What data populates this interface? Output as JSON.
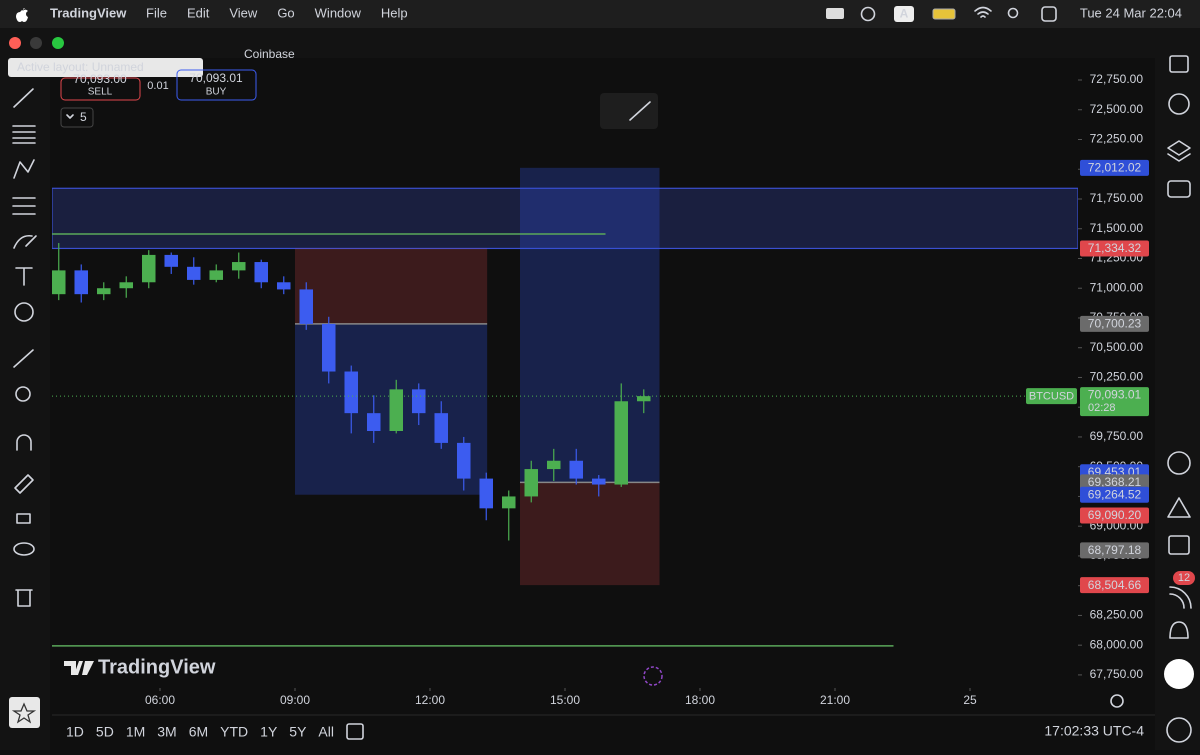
{
  "menu_bar": {
    "app": "TradingView",
    "items": [
      "File",
      "Edit",
      "View",
      "Go",
      "Window",
      "Help"
    ],
    "input_indicator": "A",
    "clock": "Tue 24 Mar  22:04"
  },
  "window": {
    "tooltip": "Active layout: Unnamed",
    "symbol_exchange": "Coinbase"
  },
  "order_panel": {
    "sell_price": "70,093.00",
    "sell_label": "SELL",
    "quantity": "0.01",
    "buy_price": "70,093.01",
    "buy_label": "BUY",
    "indicator_count": "5"
  },
  "chart_data": {
    "type": "candlestick",
    "watermark": "TradingView",
    "symbol": "BTCUSD",
    "countdown": "02:28",
    "up_color": "#4caf50",
    "down_color": "#3c5cf0",
    "x": [
      3.75,
      4.25,
      4.75,
      5.25,
      5.75,
      6.25,
      6.75,
      7.25,
      7.75,
      8.25,
      8.75,
      9.25,
      9.75,
      10.25,
      10.75,
      11.25,
      11.75,
      12.25,
      12.75,
      13.25,
      13.75,
      14.25,
      14.75,
      15.25,
      15.75,
      16.25,
      16.75
    ],
    "open": [
      70950,
      71150,
      70950,
      71000,
      71050,
      71280,
      71180,
      71070,
      71150,
      71220,
      71050,
      70990,
      70700,
      70300,
      69950,
      69800,
      70150,
      69950,
      69700,
      69400,
      69150,
      69250,
      69480,
      69550,
      69400,
      69350,
      70050
    ],
    "high": [
      71380,
      71200,
      71050,
      71100,
      71320,
      71300,
      71260,
      71200,
      71300,
      71240,
      71100,
      71050,
      70760,
      70350,
      70100,
      70230,
      70200,
      70050,
      69750,
      69450,
      69300,
      69550,
      69650,
      69650,
      69430,
      70200,
      70150
    ],
    "low": [
      70900,
      70880,
      70900,
      70920,
      71000,
      71120,
      71030,
      71050,
      71080,
      71000,
      70950,
      70650,
      70200,
      69780,
      69700,
      69780,
      69850,
      69650,
      69300,
      69050,
      68880,
      69200,
      69380,
      69350,
      69250,
      69330,
      69950
    ],
    "close": [
      71150,
      70950,
      71000,
      71050,
      71280,
      71180,
      71070,
      71150,
      71220,
      71050,
      70990,
      70700,
      70300,
      69950,
      69800,
      70150,
      69950,
      69700,
      69400,
      69150,
      69250,
      69480,
      69550,
      69400,
      69350,
      70050,
      70093.01
    ],
    "last_price": {
      "value": 70093.01,
      "label": "70,093.01"
    },
    "xlim": [
      3.6,
      26.4
    ],
    "xticks": [
      {
        "value": 6,
        "label": "06:00"
      },
      {
        "value": 9,
        "label": "09:00"
      },
      {
        "value": 12,
        "label": "12:00"
      },
      {
        "value": 15,
        "label": "15:00"
      },
      {
        "value": 18,
        "label": "18:00"
      },
      {
        "value": 21,
        "label": "21:00"
      },
      {
        "value": 24,
        "label": "25"
      }
    ],
    "ylim": [
      67640,
      72935
    ],
    "yticks": [
      {
        "value": 67750,
        "label": "67,750.00"
      },
      {
        "value": 68000,
        "label": "68,000.00"
      },
      {
        "value": 68250,
        "label": "68,250.00"
      },
      {
        "value": 68500,
        "label": "68,500.00"
      },
      {
        "value": 68750,
        "label": "68,750.00"
      },
      {
        "value": 69000,
        "label": "69,000.00"
      },
      {
        "value": 69250,
        "label": "69,250.00"
      },
      {
        "value": 69500,
        "label": "69,500.00"
      },
      {
        "value": 69750,
        "label": "69,750.00"
      },
      {
        "value": 70000,
        "label": "70,000.00"
      },
      {
        "value": 70250,
        "label": "70,250.00"
      },
      {
        "value": 70500,
        "label": "70,500.00"
      },
      {
        "value": 70750,
        "label": "70,750.00"
      },
      {
        "value": 71000,
        "label": "71,000.00"
      },
      {
        "value": 71250,
        "label": "71,250.00"
      },
      {
        "value": 71500,
        "label": "71,500.00"
      },
      {
        "value": 71750,
        "label": "71,750.00"
      },
      {
        "value": 72000,
        "label": "72,000.00"
      },
      {
        "value": 72250,
        "label": "72,250.00"
      },
      {
        "value": 72500,
        "label": "72,500.00"
      },
      {
        "value": 72750,
        "label": "72,750.00"
      }
    ],
    "price_tags": [
      {
        "value": 72012.02,
        "label": "72,012.02",
        "color": "#2f4fd8"
      },
      {
        "value": 71334.32,
        "label": "71,334.32",
        "color": "#e0474c"
      },
      {
        "value": 70700.23,
        "label": "70,700.23",
        "color": "#6b6b6b"
      },
      {
        "value": 69453.01,
        "label": "69,453.01",
        "color": "#2f4fd8"
      },
      {
        "value": 69368.21,
        "label": "69,368.21",
        "color": "#6b6b6b"
      },
      {
        "value": 69264.52,
        "label": "69,264.52",
        "color": "#2f4fd8"
      },
      {
        "value": 69090.2,
        "label": "69,090.20",
        "color": "#e0474c"
      },
      {
        "value": 68797.18,
        "label": "68,797.18",
        "color": "#6b6b6b"
      },
      {
        "value": 68504.66,
        "label": "68,504.66",
        "color": "#e0474c"
      }
    ],
    "positions": [
      {
        "x": [
          9.0,
          13.27
        ],
        "stop": 71334.32,
        "entry": 70700.23,
        "target": 69264.52
      },
      {
        "x": [
          14.0,
          17.1
        ],
        "stop": 68504.66,
        "entry": 69368.21,
        "target": 72012.02
      }
    ],
    "rectangle": {
      "prices": [
        71840,
        71334.32
      ],
      "color": "#3b4fd0"
    },
    "lines": [
      {
        "price": 71456,
        "x": [
          3.6,
          15.9
        ],
        "color": "#5aa85a"
      },
      {
        "price": 67994,
        "x": [
          3.6,
          22.3
        ],
        "color": "#5aa85a"
      }
    ],
    "grid": false
  },
  "timeframes": [
    "1D",
    "5D",
    "1M",
    "3M",
    "6M",
    "YTD",
    "1Y",
    "5Y",
    "All"
  ],
  "status": {
    "clock": "17:02:33 UTC-4"
  },
  "sidebar": {
    "notification_badge": "12"
  }
}
